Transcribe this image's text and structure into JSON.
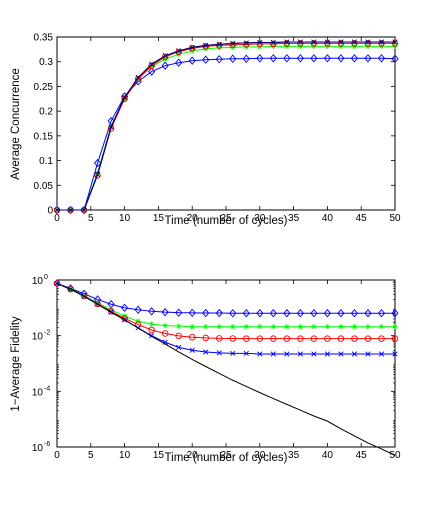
{
  "chart_data": [
    {
      "type": "line",
      "xlabel": "Time (number of cycles)",
      "ylabel": "Average Concurrence",
      "xlim": [
        0,
        50
      ],
      "ylim": [
        0,
        0.35
      ],
      "xticks": [
        "0",
        "5",
        "10",
        "15",
        "20",
        "25",
        "30",
        "35",
        "40",
        "45",
        "50"
      ],
      "yticks": [
        "0",
        "0.05",
        "0.1",
        "0.15",
        "0.2",
        "0.25",
        "0.3",
        "0.35"
      ],
      "grid": false,
      "x": [
        0,
        2,
        4,
        6,
        8,
        10,
        12,
        14,
        16,
        18,
        20,
        22,
        24,
        26,
        28,
        30,
        32,
        34,
        36,
        38,
        40,
        42,
        44,
        46,
        48,
        50
      ],
      "series": [
        {
          "color": "#0000ff",
          "marker": "diamond",
          "values": [
            0,
            0,
            0,
            0.095,
            0.18,
            0.23,
            0.26,
            0.28,
            0.292,
            0.298,
            0.302,
            0.304,
            0.305,
            0.306,
            0.306,
            0.307,
            0.307,
            0.307,
            0.307,
            0.307,
            0.307,
            0.307,
            0.307,
            0.307,
            0.307,
            0.306
          ]
        },
        {
          "color": "#00ff00",
          "marker": "star",
          "values": [
            0,
            0,
            0,
            0.075,
            0.17,
            0.225,
            0.265,
            0.29,
            0.305,
            0.315,
            0.322,
            0.326,
            0.328,
            0.329,
            0.33,
            0.33,
            0.331,
            0.331,
            0.331,
            0.331,
            0.331,
            0.331,
            0.331,
            0.331,
            0.331,
            0.331
          ]
        },
        {
          "color": "#ff0000",
          "marker": "circle",
          "values": [
            0,
            0,
            0,
            0.07,
            0.165,
            0.225,
            0.265,
            0.292,
            0.31,
            0.32,
            0.327,
            0.331,
            0.333,
            0.334,
            0.335,
            0.336,
            0.336,
            0.337,
            0.337,
            0.337,
            0.337,
            0.337,
            0.337,
            0.337,
            0.337,
            0.337
          ]
        },
        {
          "color": "#000000",
          "marker": "none",
          "values": [
            0,
            0,
            0,
            0.072,
            0.168,
            0.228,
            0.268,
            0.295,
            0.312,
            0.322,
            0.329,
            0.333,
            0.335,
            0.337,
            0.338,
            0.339,
            0.339,
            0.34,
            0.34,
            0.34,
            0.34,
            0.34,
            0.34,
            0.34,
            0.34,
            0.34
          ]
        },
        {
          "color": "#000080",
          "marker": "x",
          "values": [
            0,
            0,
            0,
            0.072,
            0.168,
            0.228,
            0.268,
            0.295,
            0.312,
            0.322,
            0.329,
            0.333,
            0.335,
            0.337,
            0.338,
            0.339,
            0.339,
            0.34,
            0.34,
            0.34,
            0.34,
            0.34,
            0.34,
            0.34,
            0.34,
            0.34
          ]
        }
      ]
    },
    {
      "type": "line",
      "xlabel": "Time (number of cycles)",
      "ylabel": "1−Average Fidelity",
      "xlim": [
        0,
        50
      ],
      "ylim": [
        1e-06,
        1
      ],
      "yscale": "log",
      "xticks": [
        "0",
        "5",
        "10",
        "15",
        "20",
        "25",
        "30",
        "35",
        "40",
        "45",
        "50"
      ],
      "yticks": [
        {
          "value": 1,
          "base": "10",
          "exp": "0"
        },
        {
          "value": 0.01,
          "base": "10",
          "exp": "-2"
        },
        {
          "value": 0.0001,
          "base": "10",
          "exp": "-4"
        },
        {
          "value": 1e-06,
          "base": "10",
          "exp": "-6"
        }
      ],
      "grid": false,
      "x": [
        0,
        2,
        4,
        6,
        8,
        10,
        12,
        14,
        16,
        18,
        20,
        22,
        24,
        26,
        28,
        30,
        32,
        34,
        36,
        38,
        40,
        42,
        44,
        46,
        48,
        50
      ],
      "series": [
        {
          "color": "#0000ff",
          "marker": "diamond",
          "values": [
            0.75,
            0.5,
            0.32,
            0.2,
            0.135,
            0.1,
            0.085,
            0.075,
            0.07,
            0.067,
            0.066,
            0.065,
            0.065,
            0.064,
            0.064,
            0.064,
            0.064,
            0.064,
            0.064,
            0.064,
            0.064,
            0.064,
            0.064,
            0.064,
            0.064,
            0.064
          ]
        },
        {
          "color": "#00ff00",
          "marker": "star",
          "values": [
            0.75,
            0.48,
            0.28,
            0.15,
            0.085,
            0.05,
            0.033,
            0.026,
            0.023,
            0.022,
            0.021,
            0.021,
            0.021,
            0.021,
            0.021,
            0.021,
            0.021,
            0.021,
            0.021,
            0.021,
            0.021,
            0.021,
            0.021,
            0.021,
            0.021,
            0.021
          ]
        },
        {
          "color": "#ff0000",
          "marker": "circle",
          "values": [
            0.75,
            0.47,
            0.27,
            0.14,
            0.075,
            0.042,
            0.025,
            0.016,
            0.012,
            0.0098,
            0.0088,
            0.0083,
            0.008,
            0.0079,
            0.0078,
            0.0078,
            0.0078,
            0.0078,
            0.0078,
            0.0078,
            0.0078,
            0.0078,
            0.0078,
            0.0078,
            0.0078,
            0.0078
          ]
        },
        {
          "color": "#0000ff",
          "marker": "x",
          "values": [
            0.75,
            0.47,
            0.26,
            0.135,
            0.07,
            0.037,
            0.019,
            0.01,
            0.0058,
            0.0038,
            0.003,
            0.0026,
            0.0024,
            0.0023,
            0.0023,
            0.0022,
            0.0022,
            0.0022,
            0.0022,
            0.0022,
            0.0022,
            0.0022,
            0.0022,
            0.0022,
            0.0022,
            0.0022
          ]
        },
        {
          "color": "#000000",
          "marker": "none",
          "values": [
            0.75,
            0.47,
            0.26,
            0.135,
            0.07,
            0.037,
            0.019,
            0.0095,
            0.005,
            0.0026,
            0.0014,
            0.00078,
            0.00044,
            0.00025,
            0.00015,
            9e-05,
            5.5e-05,
            3.4e-05,
            2.1e-05,
            1.3e-05,
            8.5e-06,
            4.5e-06,
            2.5e-06,
            1.4e-06,
            8.5e-07,
            5e-07
          ]
        }
      ]
    }
  ]
}
